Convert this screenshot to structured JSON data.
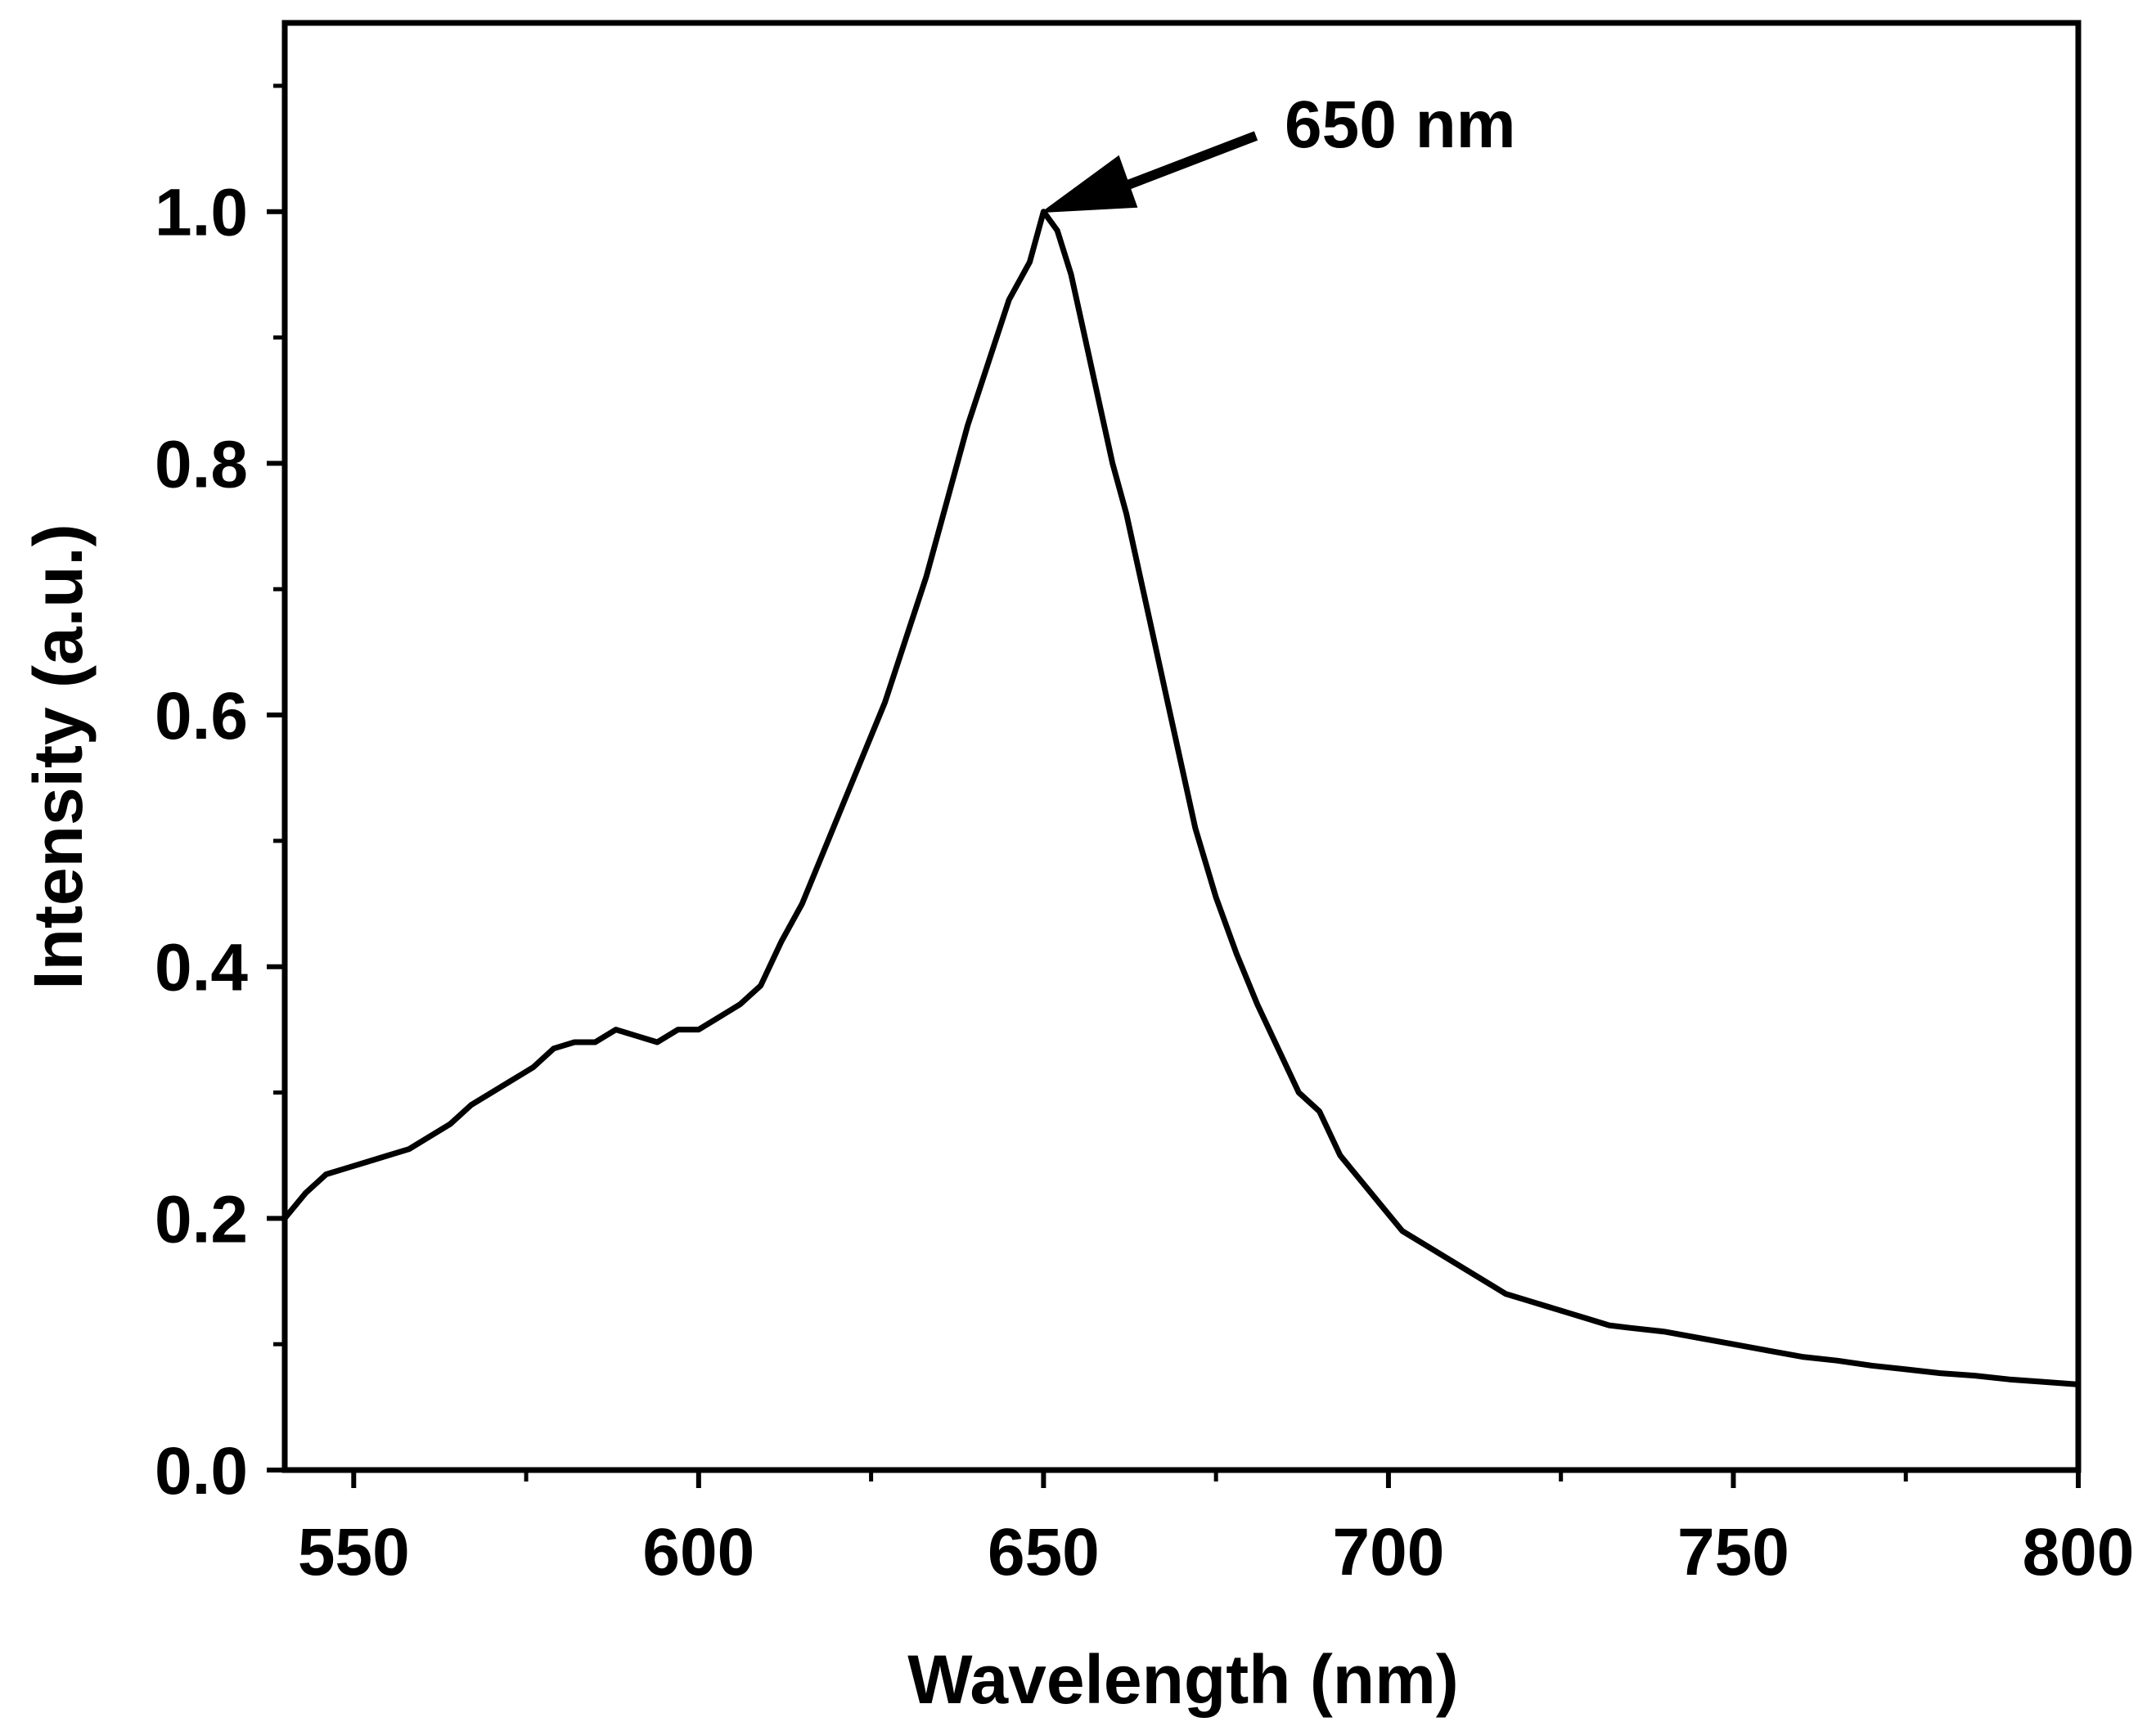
{
  "chart_data": {
    "type": "line",
    "title": "",
    "xlabel": "Wavelength (nm)",
    "ylabel": "Intensity (a.u.)",
    "xlim": [
      540,
      800
    ],
    "ylim": [
      0,
      1.15
    ],
    "x_ticks": [
      550,
      600,
      650,
      700,
      750,
      800
    ],
    "x_tick_labels": [
      "550",
      "600",
      "650",
      "700",
      "750",
      "800"
    ],
    "x_minor_ticks": [
      575,
      625,
      675,
      725,
      775
    ],
    "y_ticks": [
      0.0,
      0.2,
      0.4,
      0.6,
      0.8,
      1.0
    ],
    "y_tick_labels": [
      "0.0",
      "0.2",
      "0.4",
      "0.6",
      "0.8",
      "1.0"
    ],
    "y_minor_ticks": [
      0.1,
      0.3,
      0.5,
      0.7,
      0.9,
      1.1
    ],
    "grid": false,
    "legend": "none",
    "line_color": "#000000",
    "series": [
      {
        "x": [
          540,
          543,
          546,
          549,
          552,
          555,
          558,
          561,
          564,
          567,
          570,
          573,
          576,
          579,
          582,
          585,
          588,
          591,
          594,
          597,
          600,
          603,
          606,
          609,
          612,
          615,
          618,
          621,
          624,
          627,
          630,
          633,
          636,
          639,
          642,
          645,
          648,
          650,
          652,
          654,
          656,
          658,
          660,
          662,
          664,
          666,
          668,
          670,
          672,
          675,
          678,
          681,
          684,
          687,
          690,
          693,
          696,
          699,
          702,
          705,
          708,
          711,
          714,
          717,
          720,
          723,
          726,
          729,
          732,
          735,
          740,
          745,
          750,
          755,
          760,
          765,
          770,
          775,
          780,
          785,
          790,
          795,
          800
        ],
        "y": [
          0.2,
          0.22,
          0.235,
          0.24,
          0.245,
          0.25,
          0.255,
          0.265,
          0.275,
          0.29,
          0.3,
          0.31,
          0.32,
          0.335,
          0.34,
          0.34,
          0.35,
          0.345,
          0.34,
          0.35,
          0.35,
          0.36,
          0.37,
          0.385,
          0.42,
          0.45,
          0.49,
          0.53,
          0.57,
          0.61,
          0.66,
          0.71,
          0.77,
          0.83,
          0.88,
          0.93,
          0.96,
          1.0,
          0.985,
          0.95,
          0.9,
          0.85,
          0.8,
          0.76,
          0.71,
          0.66,
          0.61,
          0.56,
          0.51,
          0.455,
          0.41,
          0.37,
          0.335,
          0.3,
          0.285,
          0.25,
          0.23,
          0.21,
          0.19,
          0.18,
          0.17,
          0.16,
          0.15,
          0.14,
          0.135,
          0.13,
          0.125,
          0.12,
          0.115,
          0.113,
          0.11,
          0.105,
          0.1,
          0.095,
          0.09,
          0.087,
          0.083,
          0.08,
          0.077,
          0.075,
          0.072,
          0.07,
          0.068
        ]
      }
    ],
    "annotations": [
      {
        "text": "650 nm",
        "x": 650,
        "y": 1.0,
        "arrow": true
      }
    ]
  }
}
